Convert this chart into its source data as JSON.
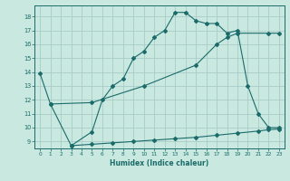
{
  "xlabel": "Humidex (Indice chaleur)",
  "bg_color": "#c8e8e0",
  "grid_color": "#a8ccc8",
  "line_color": "#1a6b6a",
  "line1_x": [
    0,
    1,
    3,
    5,
    6,
    7,
    8,
    9,
    10,
    11,
    12,
    13,
    14,
    15,
    16,
    17,
    18,
    19,
    20,
    21,
    22,
    23
  ],
  "line1_y": [
    13.9,
    11.7,
    8.7,
    9.7,
    12.0,
    13.0,
    13.5,
    15.0,
    15.5,
    16.5,
    17.0,
    18.3,
    18.3,
    17.7,
    17.5,
    17.5,
    16.8,
    17.0,
    13.0,
    11.0,
    10.0,
    10.0
  ],
  "line2_x": [
    1,
    5,
    10,
    15,
    17,
    18,
    19,
    22,
    23
  ],
  "line2_y": [
    11.7,
    11.8,
    13.0,
    14.5,
    16.0,
    16.5,
    16.8,
    16.8,
    16.8
  ],
  "line3_x": [
    3,
    5,
    7,
    9,
    11,
    13,
    15,
    17,
    19,
    21,
    22,
    23
  ],
  "line3_y": [
    8.7,
    8.8,
    8.9,
    9.0,
    9.1,
    9.2,
    9.3,
    9.45,
    9.6,
    9.75,
    9.85,
    9.9
  ],
  "xlim": [
    -0.5,
    23.5
  ],
  "ylim": [
    8.5,
    18.8
  ],
  "yticks": [
    9,
    10,
    11,
    12,
    13,
    14,
    15,
    16,
    17,
    18
  ],
  "xticks": [
    0,
    1,
    2,
    3,
    4,
    5,
    6,
    7,
    8,
    9,
    10,
    11,
    12,
    13,
    14,
    15,
    16,
    17,
    18,
    19,
    20,
    21,
    22,
    23
  ]
}
